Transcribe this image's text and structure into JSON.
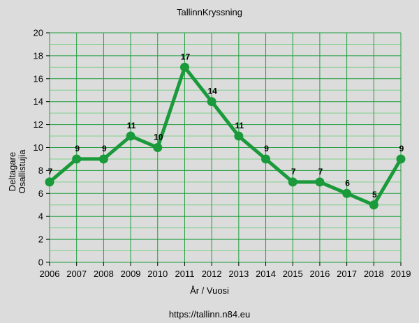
{
  "chart_data": {
    "type": "line",
    "title": "TallinnKryssning",
    "xlabel": "År / Vuosi",
    "ylabel": [
      "Deltagare",
      "Osallistujia"
    ],
    "x": [
      2006,
      2007,
      2008,
      2009,
      2010,
      2011,
      2012,
      2013,
      2014,
      2015,
      2016,
      2017,
      2018,
      2019
    ],
    "series": [
      {
        "values": [
          7,
          9,
          9,
          11,
          10,
          17,
          14,
          11,
          9,
          7,
          7,
          6,
          5,
          9
        ]
      }
    ],
    "ylim": [
      0,
      20
    ],
    "yticks": [
      0,
      2,
      4,
      6,
      8,
      10,
      12,
      14,
      16,
      18,
      20
    ],
    "grid": true,
    "data_labels": true,
    "colors": {
      "line": "#1a9a3a",
      "grid_major": "#1e9e3c",
      "grid_minor": "#7fcf8a",
      "plot_background": "#dcdcdc"
    }
  },
  "footer": {
    "source": "https://tallinn.n84.eu"
  }
}
